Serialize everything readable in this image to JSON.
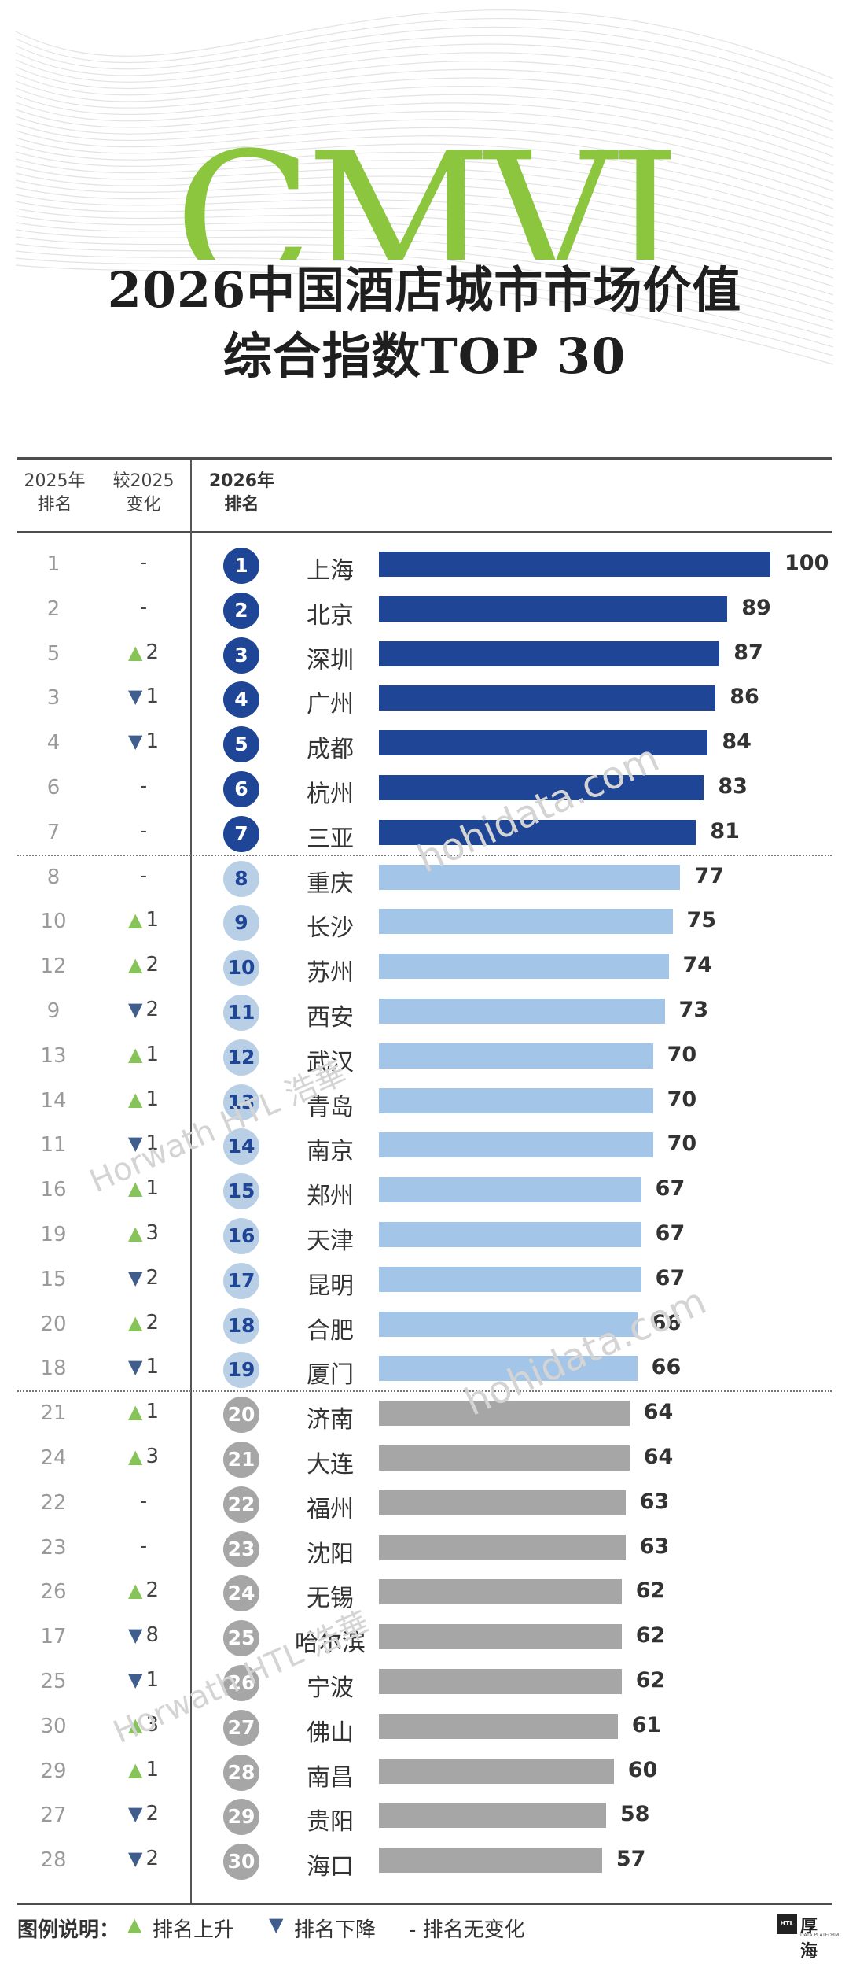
{
  "title": {
    "line1": "2026中国酒店城市市场价值",
    "line2": "综合指数TOP 30",
    "bg_logo": "CMVI"
  },
  "headers": {
    "rank2025_l1": "2025年",
    "rank2025_l2": "排名",
    "change_l1": "较2025",
    "change_l2": "变化",
    "rank2026_l1": "2026年",
    "rank2026_l2": "排名"
  },
  "legend": {
    "title": "图例说明：",
    "up": "排名上升",
    "down": "排名下降",
    "same": "- 排名无变化"
  },
  "watermarks": {
    "site": "hohidata.com",
    "brand": "Horwath HTL 浩華"
  },
  "logo": {
    "mark": "HTL",
    "text": "厚海",
    "sub": "DATA PLATFORM"
  },
  "colors": {
    "tier1": "#1f4596",
    "tier2": "#a3c5e8",
    "tier3": "#a6a6a6",
    "badge_tier2": "#b8cfe6",
    "up": "#86c45a",
    "down": "#3f5e8e"
  },
  "chart_data": {
    "type": "bar",
    "orientation": "horizontal",
    "xlim": [
      0,
      100
    ],
    "grid": false,
    "legend_placement": "bottom",
    "rows": [
      {
        "rank2026": "1",
        "city": "上海",
        "value": 100,
        "rank2025": "1",
        "change": "-",
        "dir": "none",
        "tier": 1
      },
      {
        "rank2026": "2",
        "city": "北京",
        "value": 89,
        "rank2025": "2",
        "change": "-",
        "dir": "none",
        "tier": 1
      },
      {
        "rank2026": "3",
        "city": "深圳",
        "value": 87,
        "rank2025": "5",
        "change": "2",
        "dir": "up",
        "tier": 1
      },
      {
        "rank2026": "4",
        "city": "广州",
        "value": 86,
        "rank2025": "3",
        "change": "1",
        "dir": "down",
        "tier": 1
      },
      {
        "rank2026": "5",
        "city": "成都",
        "value": 84,
        "rank2025": "4",
        "change": "1",
        "dir": "down",
        "tier": 1
      },
      {
        "rank2026": "6",
        "city": "杭州",
        "value": 83,
        "rank2025": "6",
        "change": "-",
        "dir": "none",
        "tier": 1
      },
      {
        "rank2026": "7",
        "city": "三亚",
        "value": 81,
        "rank2025": "7",
        "change": "-",
        "dir": "none",
        "tier": 1
      },
      {
        "rank2026": "8",
        "city": "重庆",
        "value": 77,
        "rank2025": "8",
        "change": "-",
        "dir": "none",
        "tier": 2
      },
      {
        "rank2026": "9",
        "city": "长沙",
        "value": 75,
        "rank2025": "10",
        "change": "1",
        "dir": "up",
        "tier": 2
      },
      {
        "rank2026": "10",
        "city": "苏州",
        "value": 74,
        "rank2025": "12",
        "change": "2",
        "dir": "up",
        "tier": 2
      },
      {
        "rank2026": "11",
        "city": "西安",
        "value": 73,
        "rank2025": "9",
        "change": "2",
        "dir": "down",
        "tier": 2
      },
      {
        "rank2026": "12",
        "city": "武汉",
        "value": 70,
        "rank2025": "13",
        "change": "1",
        "dir": "up",
        "tier": 2
      },
      {
        "rank2026": "13",
        "city": "青岛",
        "value": 70,
        "rank2025": "14",
        "change": "1",
        "dir": "up",
        "tier": 2
      },
      {
        "rank2026": "14",
        "city": "南京",
        "value": 70,
        "rank2025": "11",
        "change": "1",
        "dir": "down",
        "tier": 2
      },
      {
        "rank2026": "15",
        "city": "郑州",
        "value": 67,
        "rank2025": "16",
        "change": "1",
        "dir": "up",
        "tier": 2
      },
      {
        "rank2026": "16",
        "city": "天津",
        "value": 67,
        "rank2025": "19",
        "change": "3",
        "dir": "up",
        "tier": 2
      },
      {
        "rank2026": "17",
        "city": "昆明",
        "value": 67,
        "rank2025": "15",
        "change": "2",
        "dir": "down",
        "tier": 2
      },
      {
        "rank2026": "18",
        "city": "合肥",
        "value": 66,
        "rank2025": "20",
        "change": "2",
        "dir": "up",
        "tier": 2
      },
      {
        "rank2026": "19",
        "city": "厦门",
        "value": 66,
        "rank2025": "18",
        "change": "1",
        "dir": "down",
        "tier": 2
      },
      {
        "rank2026": "20",
        "city": "济南",
        "value": 64,
        "rank2025": "21",
        "change": "1",
        "dir": "up",
        "tier": 3
      },
      {
        "rank2026": "21",
        "city": "大连",
        "value": 64,
        "rank2025": "24",
        "change": "3",
        "dir": "up",
        "tier": 3
      },
      {
        "rank2026": "22",
        "city": "福州",
        "value": 63,
        "rank2025": "22",
        "change": "-",
        "dir": "none",
        "tier": 3
      },
      {
        "rank2026": "23",
        "city": "沈阳",
        "value": 63,
        "rank2025": "23",
        "change": "-",
        "dir": "none",
        "tier": 3
      },
      {
        "rank2026": "24",
        "city": "无锡",
        "value": 62,
        "rank2025": "26",
        "change": "2",
        "dir": "up",
        "tier": 3
      },
      {
        "rank2026": "25",
        "city": "哈尔滨",
        "value": 62,
        "rank2025": "17",
        "change": "8",
        "dir": "down",
        "tier": 3
      },
      {
        "rank2026": "26",
        "city": "宁波",
        "value": 62,
        "rank2025": "25",
        "change": "1",
        "dir": "down",
        "tier": 3
      },
      {
        "rank2026": "27",
        "city": "佛山",
        "value": 61,
        "rank2025": "30",
        "change": "3",
        "dir": "up",
        "tier": 3
      },
      {
        "rank2026": "28",
        "city": "南昌",
        "value": 60,
        "rank2025": "29",
        "change": "1",
        "dir": "up",
        "tier": 3
      },
      {
        "rank2026": "29",
        "city": "贵阳",
        "value": 58,
        "rank2025": "27",
        "change": "2",
        "dir": "down",
        "tier": 3
      },
      {
        "rank2026": "30",
        "city": "海口",
        "value": 57,
        "rank2025": "28",
        "change": "2",
        "dir": "down",
        "tier": 3
      }
    ]
  }
}
